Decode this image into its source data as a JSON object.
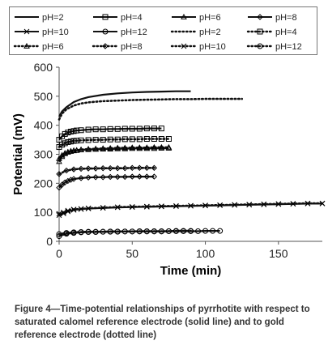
{
  "chart_data": {
    "type": "line",
    "xlabel": "Time (min)",
    "ylabel": "Potential (mV)",
    "xlim": [
      0,
      180
    ],
    "ylim": [
      0,
      600
    ],
    "xticks": [
      0,
      50,
      100,
      150
    ],
    "yticks": [
      0,
      100,
      200,
      300,
      400,
      500,
      600
    ],
    "grid": false,
    "legend_position": "top",
    "series": [
      {
        "name": "pH=2",
        "electrode": "saturated calomel",
        "style": "solid",
        "marker": "none",
        "x": [
          0,
          2,
          5,
          10,
          15,
          20,
          30,
          40,
          50,
          60,
          70,
          80,
          90
        ],
        "y": [
          430,
          448,
          462,
          480,
          490,
          497,
          505,
          510,
          513,
          515,
          516,
          517,
          517
        ]
      },
      {
        "name": "pH=4",
        "electrode": "saturated calomel",
        "style": "solid",
        "marker": "square",
        "x": [
          0,
          2,
          4,
          6,
          8,
          10,
          12,
          15,
          20,
          25,
          30,
          35,
          40,
          45,
          50,
          55,
          60,
          65,
          70
        ],
        "y": [
          350,
          362,
          370,
          375,
          378,
          380,
          382,
          383,
          385,
          386,
          386,
          387,
          387,
          388,
          388,
          388,
          389,
          389,
          389
        ]
      },
      {
        "name": "pH=6",
        "electrode": "saturated calomel",
        "style": "solid",
        "marker": "triangle",
        "x": [
          0,
          2,
          4,
          6,
          8,
          10,
          12,
          15,
          20,
          25,
          30,
          35,
          40,
          45,
          50,
          55,
          60,
          65,
          70,
          75
        ],
        "y": [
          275,
          292,
          302,
          307,
          310,
          312,
          313,
          315,
          316,
          317,
          318,
          318,
          319,
          319,
          320,
          320,
          320,
          320,
          321,
          321
        ]
      },
      {
        "name": "pH=8",
        "electrode": "saturated calomel",
        "style": "solid",
        "marker": "diamond",
        "x": [
          0,
          2,
          4,
          6,
          8,
          10,
          15,
          20,
          25,
          30,
          35,
          40,
          45,
          50,
          55,
          60,
          65
        ],
        "y": [
          185,
          195,
          203,
          208,
          212,
          215,
          218,
          220,
          221,
          221,
          222,
          222,
          222,
          223,
          223,
          223,
          223
        ]
      },
      {
        "name": "pH=10",
        "electrode": "saturated calomel",
        "style": "solid",
        "marker": "x",
        "x": [
          0,
          3,
          6,
          10,
          15,
          20,
          30,
          40,
          50,
          60,
          70,
          80,
          90,
          100,
          110,
          120,
          130,
          140,
          150,
          160,
          170,
          180
        ],
        "y": [
          90,
          96,
          103,
          108,
          111,
          113,
          115,
          117,
          118,
          119,
          120,
          121,
          122,
          123,
          124,
          125,
          126,
          127,
          128,
          129,
          130,
          130
        ]
      },
      {
        "name": "pH=12",
        "electrode": "saturated calomel",
        "style": "solid",
        "marker": "circle",
        "x": [
          0,
          5,
          10,
          15,
          20,
          25,
          30,
          35,
          40,
          45,
          50,
          55,
          60,
          65,
          70,
          75,
          80,
          85,
          90,
          95,
          100,
          105,
          110
        ],
        "y": [
          18,
          26,
          29,
          31,
          32,
          32,
          33,
          33,
          33,
          34,
          34,
          34,
          34,
          34,
          34,
          35,
          35,
          35,
          35,
          35,
          36,
          36,
          36
        ]
      },
      {
        "name": "pH=2",
        "electrode": "gold",
        "style": "dotted",
        "marker": "none",
        "x": [
          0,
          2,
          5,
          10,
          15,
          20,
          30,
          40,
          50,
          60,
          70,
          80,
          90,
          100,
          110,
          125
        ],
        "y": [
          420,
          440,
          455,
          468,
          475,
          479,
          483,
          485,
          487,
          488,
          489,
          490,
          490,
          491,
          491,
          491
        ]
      },
      {
        "name": "pH=4",
        "electrode": "gold",
        "style": "dotted",
        "marker": "square",
        "x": [
          0,
          2,
          4,
          6,
          8,
          10,
          12,
          15,
          20,
          25,
          30,
          35,
          40,
          45,
          50,
          55,
          60,
          65,
          70,
          75
        ],
        "y": [
          325,
          333,
          338,
          342,
          344,
          346,
          347,
          348,
          349,
          350,
          350,
          351,
          351,
          352,
          352,
          352,
          353,
          353,
          353,
          353
        ]
      },
      {
        "name": "pH=6",
        "electrode": "gold",
        "style": "dotted",
        "marker": "triangle",
        "x": [
          0,
          2,
          4,
          6,
          8,
          10,
          12,
          15,
          20,
          25,
          30,
          35,
          40,
          45,
          50,
          55,
          60,
          65,
          70,
          75
        ],
        "y": [
          285,
          297,
          304,
          308,
          311,
          313,
          314,
          316,
          318,
          319,
          320,
          321,
          322,
          322,
          323,
          323,
          323,
          324,
          324,
          324
        ]
      },
      {
        "name": "pH=8",
        "electrode": "gold",
        "style": "dotted",
        "marker": "diamond",
        "x": [
          0,
          5,
          10,
          15,
          20,
          25,
          30,
          35,
          40,
          45,
          50,
          55,
          60,
          65
        ],
        "y": [
          232,
          244,
          248,
          250,
          251,
          251,
          252,
          252,
          252,
          252,
          253,
          253,
          253,
          253
        ]
      },
      {
        "name": "pH=10",
        "electrode": "gold",
        "style": "dotted",
        "marker": "x",
        "x": [
          0,
          3,
          6,
          10,
          15,
          20,
          30,
          40,
          50,
          60,
          70,
          80,
          90,
          100,
          110,
          120,
          130,
          140,
          150,
          160,
          170,
          180
        ],
        "y": [
          95,
          100,
          106,
          110,
          112,
          114,
          116,
          118,
          119,
          120,
          121,
          122,
          123,
          124,
          125,
          126,
          127,
          128,
          129,
          130,
          131,
          131
        ]
      },
      {
        "name": "pH=12",
        "electrode": "gold",
        "style": "dotted",
        "marker": "circle",
        "x": [
          0,
          5,
          10,
          15,
          20,
          25,
          30,
          35,
          40,
          45,
          50,
          55,
          60,
          65,
          70,
          75,
          80,
          85,
          90
        ],
        "y": [
          25,
          29,
          31,
          32,
          33,
          33,
          33,
          34,
          34,
          34,
          34,
          35,
          35,
          35,
          35,
          35,
          36,
          36,
          36
        ]
      }
    ]
  },
  "caption": "Figure 4—Time-potential relationships of pyrrhotite with respect to saturated calomel reference electrode (solid line) and to gold reference electrode (dotted line)"
}
